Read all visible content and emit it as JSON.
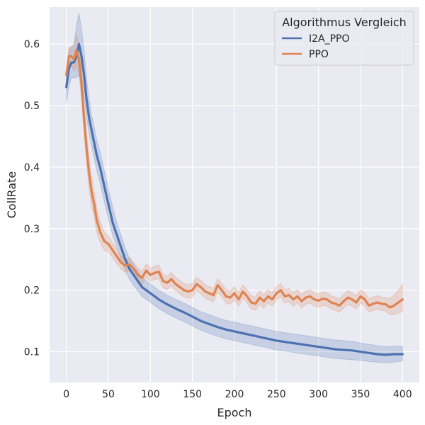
{
  "chart_data": {
    "type": "line",
    "xlabel": "Epoch",
    "ylabel": "CollRate",
    "xlim": [
      -20,
      420
    ],
    "ylim": [
      0.05,
      0.66
    ],
    "xticks": [
      0,
      50,
      100,
      150,
      200,
      250,
      300,
      350,
      400
    ],
    "yticks": [
      0.1,
      0.2,
      0.3,
      0.4,
      0.5,
      0.6
    ],
    "xtick_labels": [
      "0",
      "50",
      "100",
      "150",
      "200",
      "250",
      "300",
      "350",
      "400"
    ],
    "ytick_labels": [
      "0.1",
      "0.2",
      "0.3",
      "0.4",
      "0.5",
      "0.6"
    ],
    "grid": true,
    "legend": {
      "title": "Algorithmus Vergleich",
      "placement": "top-right"
    },
    "series": [
      {
        "name": "I2A_PPO",
        "color": "#4c72b0",
        "x": [
          0,
          3,
          6,
          9,
          12,
          15,
          18,
          21,
          24,
          27,
          30,
          33,
          36,
          40,
          45,
          50,
          55,
          60,
          65,
          70,
          75,
          80,
          90,
          100,
          110,
          120,
          130,
          140,
          150,
          160,
          170,
          180,
          190,
          200,
          210,
          220,
          230,
          240,
          250,
          260,
          270,
          280,
          290,
          300,
          310,
          320,
          330,
          340,
          350,
          360,
          370,
          380,
          390,
          400
        ],
        "y": [
          0.53,
          0.56,
          0.57,
          0.57,
          0.58,
          0.6,
          0.58,
          0.55,
          0.51,
          0.48,
          0.46,
          0.44,
          0.42,
          0.4,
          0.37,
          0.34,
          0.31,
          0.29,
          0.27,
          0.25,
          0.235,
          0.225,
          0.205,
          0.195,
          0.185,
          0.177,
          0.17,
          0.164,
          0.157,
          0.15,
          0.145,
          0.14,
          0.136,
          0.133,
          0.13,
          0.127,
          0.124,
          0.121,
          0.118,
          0.116,
          0.114,
          0.112,
          0.11,
          0.108,
          0.106,
          0.104,
          0.103,
          0.102,
          0.1,
          0.098,
          0.096,
          0.095,
          0.096,
          0.096
        ],
        "lower": [
          0.505,
          0.53,
          0.545,
          0.545,
          0.545,
          0.55,
          0.535,
          0.515,
          0.48,
          0.455,
          0.435,
          0.415,
          0.395,
          0.375,
          0.345,
          0.315,
          0.29,
          0.27,
          0.25,
          0.232,
          0.218,
          0.208,
          0.19,
          0.18,
          0.17,
          0.162,
          0.155,
          0.149,
          0.142,
          0.135,
          0.13,
          0.125,
          0.121,
          0.118,
          0.115,
          0.112,
          0.109,
          0.106,
          0.103,
          0.101,
          0.099,
          0.097,
          0.095,
          0.093,
          0.091,
          0.089,
          0.088,
          0.087,
          0.086,
          0.084,
          0.083,
          0.082,
          0.083,
          0.085
        ],
        "upper": [
          0.555,
          0.59,
          0.595,
          0.6,
          0.63,
          0.65,
          0.625,
          0.59,
          0.545,
          0.51,
          0.485,
          0.465,
          0.445,
          0.425,
          0.395,
          0.365,
          0.335,
          0.31,
          0.29,
          0.268,
          0.252,
          0.242,
          0.22,
          0.21,
          0.2,
          0.192,
          0.185,
          0.179,
          0.172,
          0.165,
          0.16,
          0.155,
          0.151,
          0.148,
          0.145,
          0.142,
          0.139,
          0.136,
          0.133,
          0.131,
          0.129,
          0.127,
          0.125,
          0.123,
          0.121,
          0.119,
          0.118,
          0.117,
          0.114,
          0.112,
          0.11,
          0.108,
          0.109,
          0.109
        ]
      },
      {
        "name": "PPO",
        "color": "#dd8452",
        "x": [
          0,
          3,
          6,
          9,
          12,
          15,
          18,
          21,
          24,
          27,
          30,
          33,
          36,
          40,
          45,
          50,
          55,
          60,
          65,
          70,
          75,
          80,
          85,
          90,
          95,
          100,
          105,
          110,
          115,
          120,
          125,
          130,
          135,
          140,
          145,
          150,
          155,
          160,
          165,
          170,
          175,
          180,
          185,
          190,
          195,
          200,
          205,
          210,
          215,
          220,
          225,
          230,
          235,
          240,
          245,
          250,
          255,
          260,
          265,
          270,
          275,
          280,
          285,
          290,
          295,
          300,
          305,
          310,
          315,
          320,
          325,
          330,
          335,
          340,
          345,
          350,
          355,
          360,
          365,
          370,
          375,
          380,
          385,
          390,
          395,
          400
        ],
        "y": [
          0.55,
          0.58,
          0.58,
          0.575,
          0.59,
          0.575,
          0.535,
          0.48,
          0.43,
          0.39,
          0.36,
          0.34,
          0.315,
          0.295,
          0.28,
          0.275,
          0.265,
          0.255,
          0.245,
          0.24,
          0.242,
          0.235,
          0.225,
          0.22,
          0.232,
          0.225,
          0.228,
          0.23,
          0.215,
          0.212,
          0.218,
          0.21,
          0.205,
          0.2,
          0.198,
          0.2,
          0.21,
          0.205,
          0.198,
          0.195,
          0.192,
          0.208,
          0.2,
          0.19,
          0.188,
          0.195,
          0.185,
          0.198,
          0.19,
          0.18,
          0.178,
          0.188,
          0.182,
          0.19,
          0.185,
          0.195,
          0.2,
          0.19,
          0.192,
          0.185,
          0.19,
          0.182,
          0.188,
          0.19,
          0.185,
          0.183,
          0.186,
          0.185,
          0.18,
          0.178,
          0.175,
          0.182,
          0.188,
          0.185,
          0.18,
          0.19,
          0.185,
          0.175,
          0.178,
          0.18,
          0.178,
          0.177,
          0.172,
          0.175,
          0.18,
          0.185
        ],
        "lower": [
          0.545,
          0.565,
          0.565,
          0.555,
          0.565,
          0.55,
          0.51,
          0.455,
          0.405,
          0.365,
          0.335,
          0.318,
          0.295,
          0.278,
          0.265,
          0.262,
          0.253,
          0.243,
          0.234,
          0.229,
          0.231,
          0.224,
          0.214,
          0.209,
          0.221,
          0.214,
          0.217,
          0.219,
          0.204,
          0.201,
          0.207,
          0.199,
          0.194,
          0.189,
          0.187,
          0.189,
          0.199,
          0.194,
          0.187,
          0.184,
          0.181,
          0.197,
          0.189,
          0.179,
          0.177,
          0.184,
          0.174,
          0.187,
          0.179,
          0.169,
          0.167,
          0.177,
          0.171,
          0.179,
          0.174,
          0.184,
          0.189,
          0.179,
          0.181,
          0.174,
          0.179,
          0.171,
          0.177,
          0.179,
          0.174,
          0.172,
          0.175,
          0.174,
          0.169,
          0.167,
          0.164,
          0.171,
          0.177,
          0.174,
          0.169,
          0.179,
          0.174,
          0.164,
          0.167,
          0.169,
          0.167,
          0.166,
          0.16,
          0.16,
          0.163,
          0.165
        ],
        "upper": [
          0.555,
          0.595,
          0.595,
          0.595,
          0.615,
          0.6,
          0.56,
          0.505,
          0.455,
          0.415,
          0.385,
          0.362,
          0.335,
          0.312,
          0.295,
          0.288,
          0.277,
          0.267,
          0.256,
          0.251,
          0.253,
          0.246,
          0.236,
          0.231,
          0.243,
          0.236,
          0.239,
          0.241,
          0.226,
          0.223,
          0.229,
          0.221,
          0.216,
          0.211,
          0.209,
          0.211,
          0.221,
          0.216,
          0.209,
          0.206,
          0.203,
          0.219,
          0.211,
          0.201,
          0.199,
          0.206,
          0.196,
          0.209,
          0.201,
          0.191,
          0.189,
          0.199,
          0.193,
          0.201,
          0.196,
          0.206,
          0.211,
          0.201,
          0.203,
          0.196,
          0.201,
          0.193,
          0.199,
          0.201,
          0.196,
          0.194,
          0.197,
          0.196,
          0.191,
          0.189,
          0.186,
          0.193,
          0.199,
          0.196,
          0.191,
          0.201,
          0.196,
          0.186,
          0.189,
          0.191,
          0.189,
          0.188,
          0.186,
          0.192,
          0.2,
          0.21
        ]
      }
    ]
  }
}
